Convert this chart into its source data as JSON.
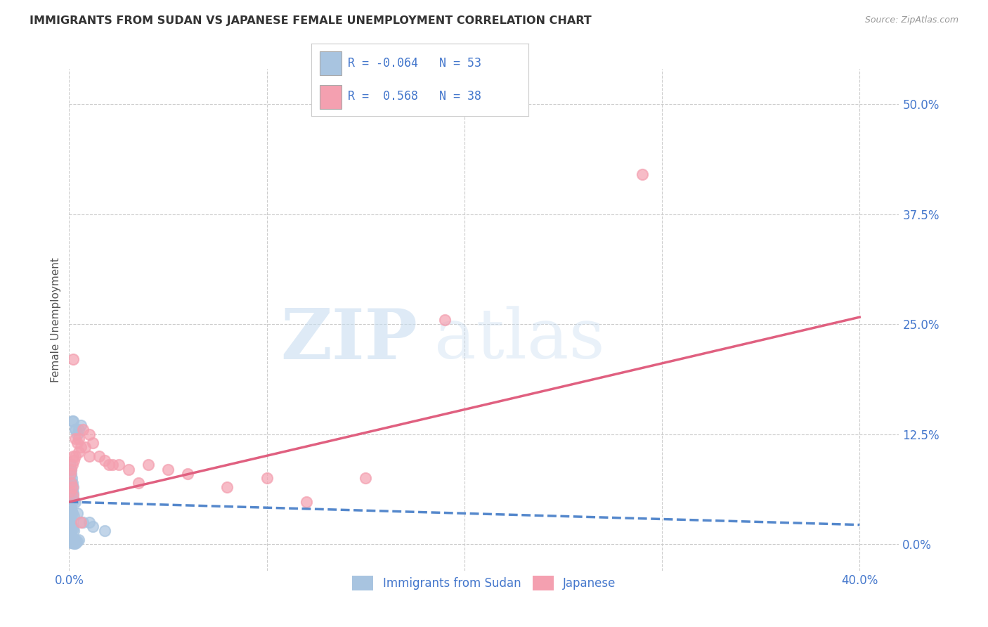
{
  "title": "IMMIGRANTS FROM SUDAN VS JAPANESE FEMALE UNEMPLOYMENT CORRELATION CHART",
  "source": "Source: ZipAtlas.com",
  "ylabel": "Female Unemployment",
  "xlim": [
    0.0,
    0.42
  ],
  "ylim": [
    -0.03,
    0.54
  ],
  "yticks": [
    0.0,
    0.125,
    0.25,
    0.375,
    0.5
  ],
  "ytick_labels": [
    "0.0%",
    "12.5%",
    "25.0%",
    "37.5%",
    "50.0%"
  ],
  "xticks": [
    0.0,
    0.1,
    0.2,
    0.3,
    0.4
  ],
  "xtick_labels": [
    "0.0%",
    "",
    "",
    "",
    "40.0%"
  ],
  "watermark_zip": "ZIP",
  "watermark_atlas": "atlas",
  "blue_R": -0.064,
  "blue_N": 53,
  "pink_R": 0.568,
  "pink_N": 38,
  "blue_color": "#a8c4e0",
  "pink_color": "#f4a0b0",
  "blue_line_color": "#5588cc",
  "pink_line_color": "#e06080",
  "text_color": "#4477cc",
  "legend_border_color": "#cccccc",
  "blue_line_x": [
    0.0,
    0.4
  ],
  "blue_line_y": [
    0.048,
    0.022
  ],
  "pink_line_x": [
    0.0,
    0.4
  ],
  "pink_line_y": [
    0.048,
    0.258
  ],
  "blue_scatter_x": [
    0.0005,
    0.0008,
    0.001,
    0.0015,
    0.002,
    0.0025,
    0.003,
    0.0005,
    0.001,
    0.0012,
    0.0018,
    0.0022,
    0.0005,
    0.0008,
    0.001,
    0.0015,
    0.002,
    0.0025,
    0.0008,
    0.001,
    0.0012,
    0.0015,
    0.002,
    0.0005,
    0.0008,
    0.001,
    0.0015,
    0.002,
    0.0025,
    0.003,
    0.0035,
    0.004,
    0.0005,
    0.0008,
    0.001,
    0.0012,
    0.0015,
    0.002,
    0.003,
    0.004,
    0.005,
    0.006,
    0.0015,
    0.002,
    0.003,
    0.004,
    0.007,
    0.01,
    0.012,
    0.018,
    0.005,
    0.003,
    0.002
  ],
  "blue_scatter_y": [
    0.055,
    0.07,
    0.065,
    0.06,
    0.058,
    0.05,
    0.048,
    0.04,
    0.042,
    0.038,
    0.035,
    0.032,
    0.028,
    0.025,
    0.022,
    0.02,
    0.018,
    0.015,
    0.012,
    0.01,
    0.008,
    0.006,
    0.005,
    0.003,
    0.003,
    0.002,
    0.002,
    0.002,
    0.001,
    0.001,
    0.002,
    0.003,
    0.09,
    0.085,
    0.08,
    0.075,
    0.07,
    0.065,
    0.13,
    0.125,
    0.13,
    0.135,
    0.14,
    0.14,
    0.13,
    0.035,
    0.025,
    0.025,
    0.02,
    0.015,
    0.005,
    0.005,
    0.005
  ],
  "pink_scatter_x": [
    0.0005,
    0.001,
    0.0015,
    0.002,
    0.0005,
    0.001,
    0.0015,
    0.002,
    0.0025,
    0.003,
    0.003,
    0.004,
    0.005,
    0.005,
    0.006,
    0.007,
    0.008,
    0.01,
    0.01,
    0.012,
    0.015,
    0.018,
    0.02,
    0.022,
    0.025,
    0.03,
    0.035,
    0.04,
    0.05,
    0.06,
    0.08,
    0.1,
    0.12,
    0.15,
    0.19,
    0.29,
    0.002,
    0.006
  ],
  "pink_scatter_y": [
    0.06,
    0.07,
    0.065,
    0.055,
    0.08,
    0.085,
    0.09,
    0.1,
    0.095,
    0.1,
    0.12,
    0.115,
    0.12,
    0.105,
    0.11,
    0.13,
    0.11,
    0.125,
    0.1,
    0.115,
    0.1,
    0.095,
    0.09,
    0.09,
    0.09,
    0.085,
    0.07,
    0.09,
    0.085,
    0.08,
    0.065,
    0.075,
    0.048,
    0.075,
    0.255,
    0.42,
    0.21,
    0.025
  ]
}
